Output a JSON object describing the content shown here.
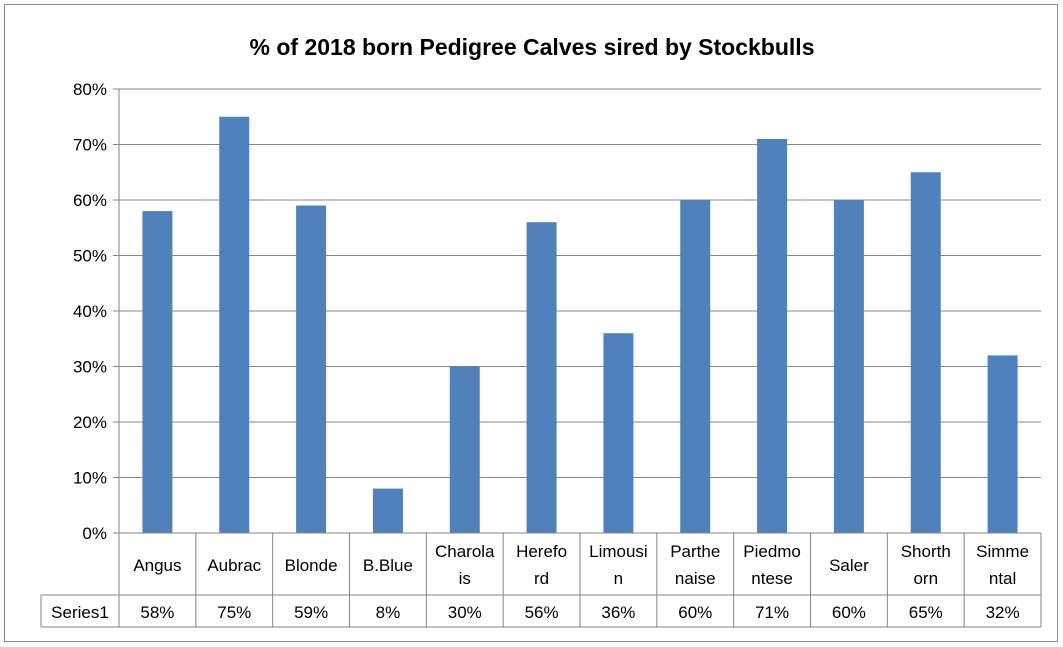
{
  "chart_data": {
    "type": "bar",
    "title": "% of 2018 born Pedigree Calves sired by Stockbulls",
    "categories": [
      [
        "Angus"
      ],
      [
        "Aubrac"
      ],
      [
        "Blonde"
      ],
      [
        "B.Blue"
      ],
      [
        "Charola",
        "is"
      ],
      [
        "Herefo",
        "rd"
      ],
      [
        "Limousi",
        "n"
      ],
      [
        "Parthe",
        "naise"
      ],
      [
        "Piedmo",
        "ntese"
      ],
      [
        "Saler"
      ],
      [
        "Shorth",
        "orn"
      ],
      [
        "Simme",
        "ntal"
      ]
    ],
    "series": [
      {
        "name": "Series1",
        "values": [
          58,
          75,
          59,
          8,
          30,
          56,
          36,
          60,
          71,
          60,
          65,
          32
        ]
      }
    ],
    "table_values": [
      "58%",
      "75%",
      "59%",
      "8%",
      "30%",
      "56%",
      "36%",
      "60%",
      "71%",
      "60%",
      "65%",
      "32%"
    ],
    "ylim": [
      0,
      80
    ],
    "yticks": [
      "0%",
      "10%",
      "20%",
      "30%",
      "40%",
      "50%",
      "60%",
      "70%",
      "80%"
    ],
    "grid": true,
    "legend": "data-table",
    "colors": {
      "bar": "#4f81bd",
      "grid": "#868686",
      "axis": "#868686"
    }
  }
}
